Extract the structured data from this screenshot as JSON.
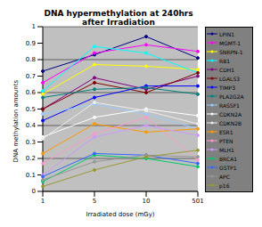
{
  "chart_data": {
    "type": "line",
    "title": "DNA hypermethylation at 240hrs after Irradiation",
    "x_label": "Irradiated dose (mGy)",
    "y_label": "DNA methylation amounts",
    "categories": [
      "1",
      "5",
      "10",
      "501"
    ],
    "ylim": [
      0,
      1
    ],
    "yticks": [
      0,
      0.1,
      0.2,
      0.3,
      0.4,
      0.5,
      0.6,
      0.7,
      0.8,
      0.9,
      1
    ],
    "grid": true,
    "legend": "right",
    "marker": "circle",
    "series": [
      {
        "name": "LPIN1",
        "color": "#000080",
        "values": [
          0.73,
          0.83,
          0.94,
          0.81
        ]
      },
      {
        "name": "MGMT-1",
        "color": "#ff00ff",
        "values": [
          0.66,
          0.84,
          0.89,
          0.85
        ]
      },
      {
        "name": "SNRPN-1",
        "color": "#ffff00",
        "values": [
          0.59,
          0.77,
          0.76,
          0.74
        ]
      },
      {
        "name": "RB1",
        "color": "#00ffff",
        "values": [
          0.61,
          0.88,
          0.84,
          0.72
        ]
      },
      {
        "name": "CDH1",
        "color": "#800080",
        "values": [
          0.5,
          0.69,
          0.62,
          0.7
        ]
      },
      {
        "name": "LGALS3",
        "color": "#800000",
        "values": [
          0.5,
          0.66,
          0.6,
          0.72
        ]
      },
      {
        "name": "TIMP3",
        "color": "#0000ff",
        "values": [
          0.43,
          0.57,
          0.64,
          0.64
        ]
      },
      {
        "name": "PLA2G2A",
        "color": "#008080",
        "values": [
          0.57,
          0.62,
          0.63,
          0.59
        ]
      },
      {
        "name": "RASSF1",
        "color": "#99ccff",
        "values": [
          0.47,
          0.53,
          0.47,
          0.38
        ]
      },
      {
        "name": "CDKN2A",
        "color": "#ffffff",
        "values": [
          0.33,
          0.45,
          0.5,
          0.46
        ]
      },
      {
        "name": "CDKN2B",
        "color": "#eeeeee",
        "values": [
          0.32,
          0.54,
          0.49,
          0.41
        ]
      },
      {
        "name": "ESR1",
        "color": "#ff9900",
        "values": [
          0.23,
          0.41,
          0.36,
          0.38
        ]
      },
      {
        "name": "PTEN",
        "color": "#ff99cc",
        "values": [
          0.17,
          0.35,
          0.45,
          0.19
        ]
      },
      {
        "name": "MLH1",
        "color": "#cc99ff",
        "values": [
          0.1,
          0.33,
          0.4,
          0.34
        ]
      },
      {
        "name": "BRCA1",
        "color": "#00cc66",
        "values": [
          0.06,
          0.22,
          0.2,
          0.15
        ]
      },
      {
        "name": "GSTP1",
        "color": "#3366ff",
        "values": [
          0.09,
          0.23,
          0.22,
          0.17
        ]
      },
      {
        "name": "APC",
        "color": "#969696",
        "values": [
          0.07,
          0.18,
          0.22,
          0.21
        ]
      },
      {
        "name": "p16",
        "color": "#999933",
        "values": [
          0.03,
          0.13,
          0.21,
          0.25
        ]
      }
    ]
  }
}
